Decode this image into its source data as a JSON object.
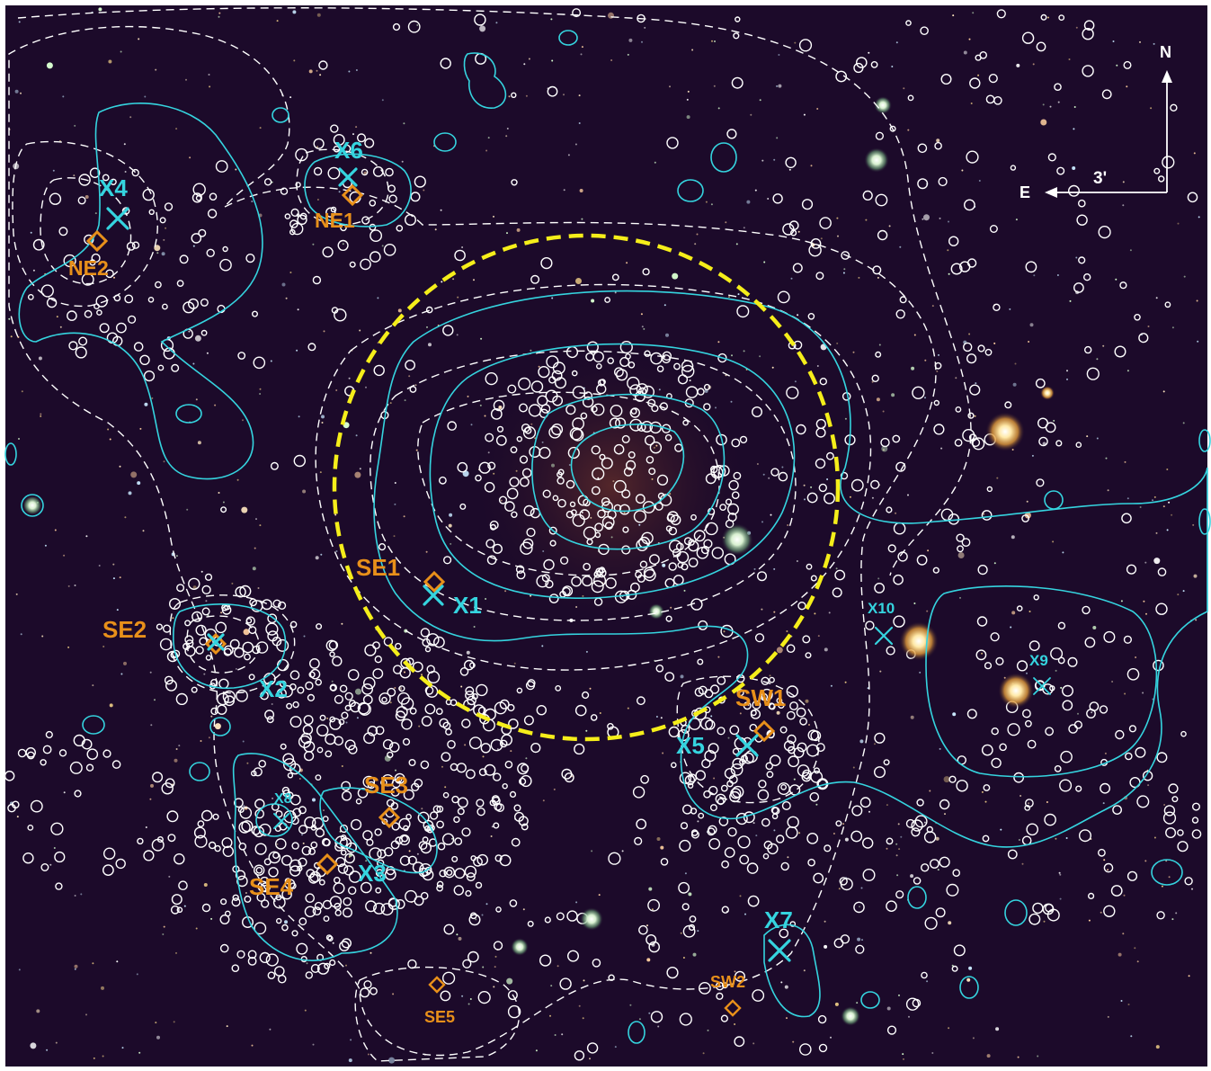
{
  "colors": {
    "sky": "#1c0a2a",
    "xray_contour": "#35d4df",
    "galaxy_contour": "#ffffff",
    "yellow_circle": "#f5ee1a",
    "subgroup_marker": "#e8901a",
    "xray_marker": "#35d4df"
  },
  "compass": {
    "north_label": "N",
    "east_label": "E",
    "scale_label": "3'"
  },
  "subgroups": [
    {
      "id": "ne1",
      "label": "NE1"
    },
    {
      "id": "ne2",
      "label": "NE2"
    },
    {
      "id": "se1",
      "label": "SE1"
    },
    {
      "id": "se2",
      "label": "SE2"
    },
    {
      "id": "se3",
      "label": "SE3"
    },
    {
      "id": "se4",
      "label": "SE4"
    },
    {
      "id": "se5",
      "label": "SE5"
    },
    {
      "id": "sw1",
      "label": "SW1"
    },
    {
      "id": "sw2",
      "label": "SW2"
    }
  ],
  "xray_sources": [
    {
      "id": "x1",
      "label": "X1"
    },
    {
      "id": "x2",
      "label": "X2"
    },
    {
      "id": "x3",
      "label": "X3"
    },
    {
      "id": "x4",
      "label": "X4"
    },
    {
      "id": "x5",
      "label": "X5"
    },
    {
      "id": "x6",
      "label": "X6"
    },
    {
      "id": "x7",
      "label": "X7"
    },
    {
      "id": "x8",
      "label": "X8"
    },
    {
      "id": "x9",
      "label": "X9"
    },
    {
      "id": "x10",
      "label": "X10"
    }
  ],
  "icons": {
    "subgroup": "diamond-icon",
    "xray": "cross-icon",
    "north": "arrow-up-icon",
    "east": "arrow-left-icon"
  }
}
